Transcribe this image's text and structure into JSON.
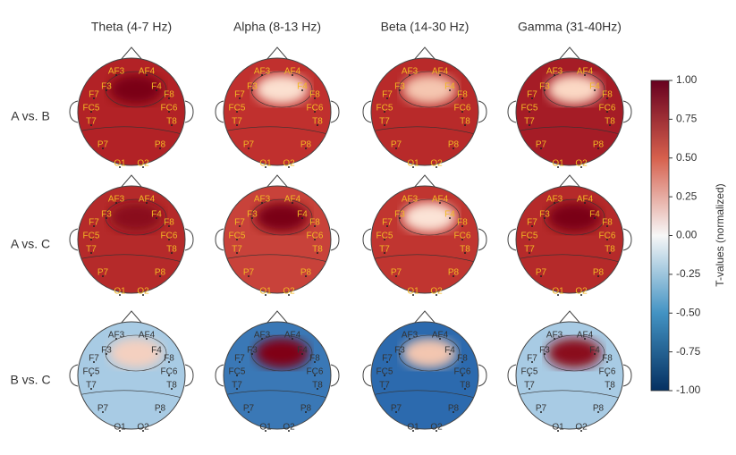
{
  "columns": [
    "Theta (4-7 Hz)",
    "Alpha (8-13 Hz)",
    "Beta (14-30 Hz)",
    "Gamma (31-40Hz)"
  ],
  "rows": [
    "A  vs. B",
    "A  vs. C",
    "B  vs. C"
  ],
  "electrodes": [
    "AF3",
    "AF4",
    "F3",
    "F4",
    "F7",
    "F8",
    "FC5",
    "FC6",
    "T7",
    "T8",
    "P7",
    "P8",
    "O1",
    "O2"
  ],
  "colorbar": {
    "label": "T-values (normalized)",
    "lim": [
      -1,
      1
    ],
    "ticks": [
      {
        "value": 1,
        "label": "1.00"
      },
      {
        "value": 0.75,
        "label": "0.75"
      },
      {
        "value": 0.5,
        "label": "0.50"
      },
      {
        "value": 0.25,
        "label": "0.25"
      },
      {
        "value": 0,
        "label": "0.00"
      },
      {
        "value": -0.25,
        "label": "-0.25"
      },
      {
        "value": -0.5,
        "label": "-0.50"
      },
      {
        "value": -0.75,
        "label": "-0.75"
      },
      {
        "value": -1,
        "label": "-1.00"
      }
    ]
  }
}
